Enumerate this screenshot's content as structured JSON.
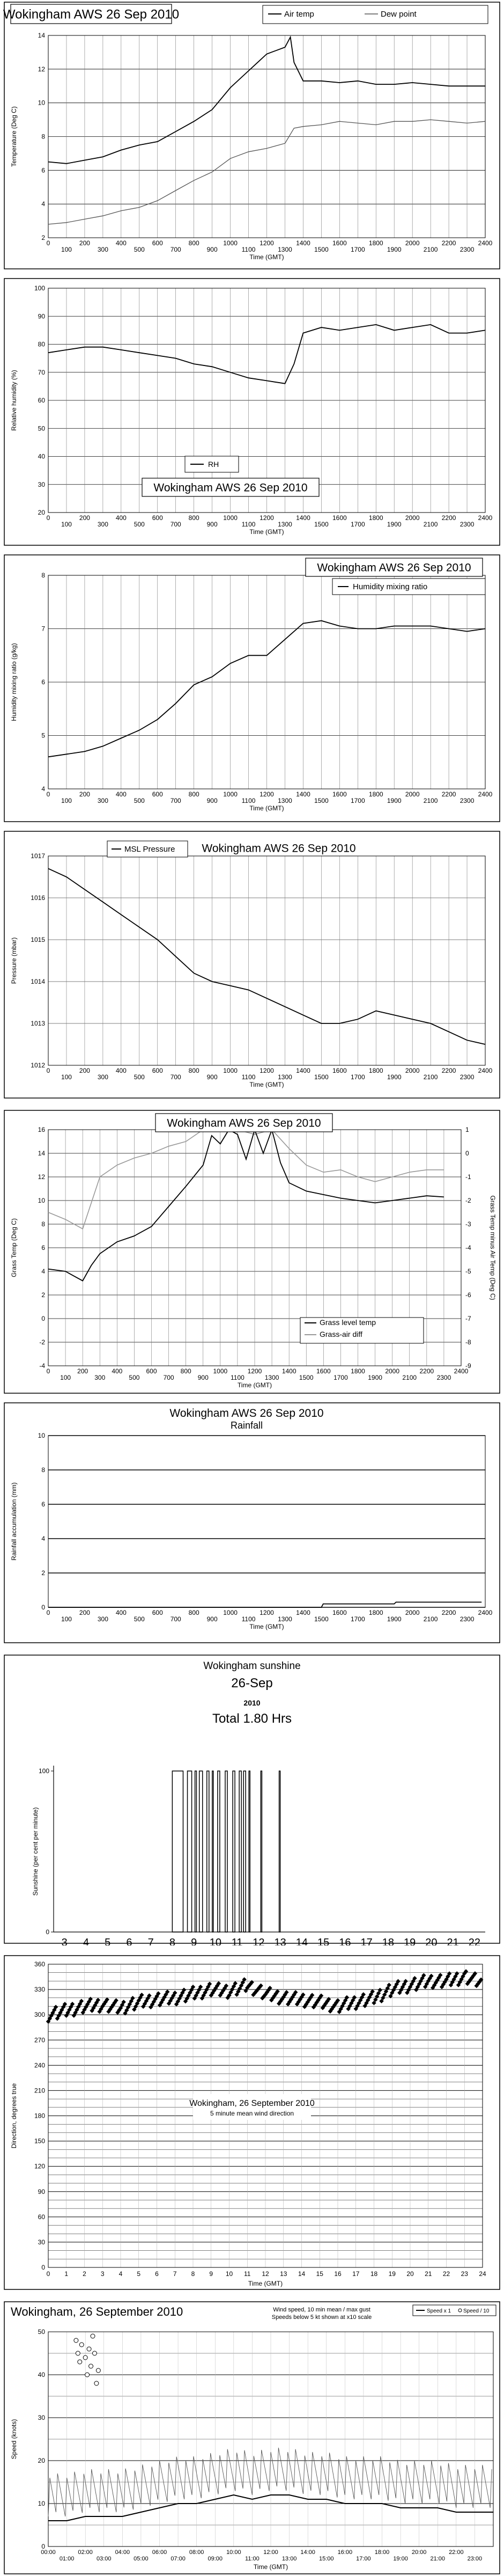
{
  "chart_data": [
    {
      "type": "line",
      "title": "Wokingham AWS 26 Sep 2010",
      "xlabel": "Time (GMT)",
      "ylabel": "Temperature (Deg C)",
      "xlim": [
        0,
        2400
      ],
      "ylim": [
        2,
        14
      ],
      "x_ticks_top": [
        "0",
        "200",
        "400",
        "600",
        "800",
        "1000",
        "1200",
        "1400",
        "1600",
        "1800",
        "2000",
        "2200",
        "2400"
      ],
      "x_ticks_bottom": [
        "100",
        "300",
        "500",
        "700",
        "900",
        "1100",
        "1300",
        "1500",
        "1700",
        "1900",
        "2100",
        "2300"
      ],
      "y_ticks": [
        "2",
        "4",
        "6",
        "8",
        "10",
        "12",
        "14"
      ],
      "legend": [
        "Air temp",
        "Dew point"
      ],
      "series": [
        {
          "name": "Air temp",
          "x": [
            0,
            100,
            200,
            300,
            400,
            500,
            600,
            700,
            800,
            900,
            1000,
            1100,
            1150,
            1200,
            1250,
            1300,
            1330,
            1350,
            1400,
            1500,
            1600,
            1700,
            1800,
            1900,
            2000,
            2100,
            2200,
            2300,
            2400
          ],
          "y": [
            6.5,
            6.4,
            6.6,
            6.8,
            7.2,
            7.5,
            7.7,
            8.3,
            8.9,
            9.6,
            10.9,
            11.9,
            12.4,
            12.9,
            13.1,
            13.3,
            13.9,
            12.4,
            11.3,
            11.3,
            11.2,
            11.3,
            11.1,
            11.1,
            11.2,
            11.1,
            11.0,
            11.0,
            11.0
          ]
        },
        {
          "name": "Dew point",
          "x": [
            0,
            100,
            200,
            300,
            400,
            500,
            600,
            700,
            800,
            900,
            1000,
            1100,
            1200,
            1300,
            1350,
            1400,
            1500,
            1600,
            1700,
            1800,
            1900,
            2000,
            2100,
            2200,
            2300,
            2400
          ],
          "y": [
            2.8,
            2.9,
            3.1,
            3.3,
            3.6,
            3.8,
            4.2,
            4.8,
            5.4,
            5.9,
            6.7,
            7.1,
            7.3,
            7.6,
            8.5,
            8.6,
            8.7,
            8.9,
            8.8,
            8.7,
            8.9,
            8.9,
            9.0,
            8.9,
            8.8,
            8.9
          ]
        }
      ]
    },
    {
      "type": "line",
      "title": "Wokingham AWS 26 Sep 2010",
      "xlabel": "Time (GMT)",
      "ylabel": "Relative humidity (%)",
      "xlim": [
        0,
        2400
      ],
      "ylim": [
        20,
        100
      ],
      "x_ticks_top": [
        "0",
        "200",
        "400",
        "600",
        "800",
        "1000",
        "1200",
        "1400",
        "1600",
        "1800",
        "2000",
        "2200",
        "2400"
      ],
      "x_ticks_bottom": [
        "100",
        "300",
        "500",
        "700",
        "900",
        "1100",
        "1300",
        "1500",
        "1700",
        "1900",
        "2100",
        "2300"
      ],
      "y_ticks": [
        "20",
        "30",
        "40",
        "50",
        "60",
        "70",
        "80",
        "90",
        "100"
      ],
      "legend": [
        "RH"
      ],
      "series": [
        {
          "name": "RH",
          "x": [
            0,
            100,
            200,
            300,
            400,
            500,
            600,
            700,
            800,
            900,
            1000,
            1100,
            1200,
            1300,
            1350,
            1400,
            1500,
            1600,
            1700,
            1800,
            1900,
            2000,
            2100,
            2200,
            2300,
            2400
          ],
          "y": [
            77,
            78,
            79,
            79,
            78,
            77,
            76,
            75,
            73,
            72,
            70,
            68,
            67,
            66,
            73,
            84,
            86,
            85,
            86,
            87,
            85,
            86,
            87,
            84,
            84,
            85
          ]
        }
      ]
    },
    {
      "type": "line",
      "title": "Wokingham AWS 26 Sep 2010",
      "xlabel": "Time (GMT)",
      "ylabel": "Humidity mixing ratio (g/kg)",
      "xlim": [
        0,
        2400
      ],
      "ylim": [
        4,
        8
      ],
      "x_ticks_top": [
        "0",
        "200",
        "400",
        "600",
        "800",
        "1000",
        "1200",
        "1400",
        "1600",
        "1800",
        "2000",
        "2200",
        "2400"
      ],
      "x_ticks_bottom": [
        "100",
        "300",
        "500",
        "700",
        "900",
        "1100",
        "1300",
        "1500",
        "1700",
        "1900",
        "2100",
        "2300"
      ],
      "y_ticks": [
        "4",
        "5",
        "6",
        "7",
        "8"
      ],
      "legend": [
        "Humidity mixing ratio"
      ],
      "series": [
        {
          "name": "Humidity mixing ratio",
          "x": [
            0,
            100,
            200,
            300,
            400,
            500,
            600,
            700,
            800,
            900,
            1000,
            1100,
            1200,
            1300,
            1400,
            1500,
            1600,
            1700,
            1800,
            1900,
            2000,
            2100,
            2200,
            2300,
            2400
          ],
          "y": [
            4.6,
            4.65,
            4.7,
            4.8,
            4.95,
            5.1,
            5.3,
            5.6,
            5.95,
            6.1,
            6.35,
            6.5,
            6.5,
            6.8,
            7.1,
            7.15,
            7.05,
            7.0,
            7.0,
            7.05,
            7.05,
            7.05,
            7.0,
            6.95,
            7.0
          ]
        }
      ]
    },
    {
      "type": "line",
      "title": "Wokingham AWS 26 Sep 2010",
      "xlabel": "Time (GMT)",
      "ylabel": "Pressure (mbar)",
      "xlim": [
        0,
        2400
      ],
      "ylim": [
        1012,
        1017
      ],
      "x_ticks_top": [
        "0",
        "200",
        "400",
        "600",
        "800",
        "1000",
        "1200",
        "1400",
        "1600",
        "1800",
        "2000",
        "2200",
        "2400"
      ],
      "x_ticks_bottom": [
        "100",
        "300",
        "500",
        "700",
        "900",
        "1100",
        "1300",
        "1500",
        "1700",
        "1900",
        "2100",
        "2300"
      ],
      "y_ticks": [
        "1012",
        "1013",
        "1014",
        "1015",
        "1016",
        "1017"
      ],
      "legend": [
        "MSL Pressure"
      ],
      "series": [
        {
          "name": "MSL Pressure",
          "x": [
            0,
            100,
            200,
            300,
            400,
            500,
            600,
            700,
            800,
            900,
            1000,
            1100,
            1200,
            1300,
            1400,
            1500,
            1600,
            1700,
            1800,
            1900,
            2000,
            2100,
            2200,
            2300,
            2400
          ],
          "y": [
            1016.7,
            1016.5,
            1016.2,
            1015.9,
            1015.6,
            1015.3,
            1015.0,
            1014.6,
            1014.2,
            1014.0,
            1013.9,
            1013.8,
            1013.6,
            1013.4,
            1013.2,
            1013.0,
            1013.0,
            1013.1,
            1013.3,
            1013.2,
            1013.1,
            1013.0,
            1012.8,
            1012.6,
            1012.5
          ]
        }
      ]
    },
    {
      "type": "line",
      "title": "Wokingham AWS 26 Sep 2010",
      "xlabel": "Time (GMT)",
      "ylabel": "Grass Temp (Deg C)",
      "ylabel_right": "Grass Temp minus Air Temp (Deg C)",
      "xlim": [
        0,
        2400
      ],
      "ylim": [
        -4,
        16
      ],
      "ylim_right": [
        -9,
        1
      ],
      "x_ticks_top": [
        "0",
        "200",
        "400",
        "600",
        "800",
        "1000",
        "1200",
        "1400",
        "1600",
        "1800",
        "2000",
        "2200",
        "2400"
      ],
      "x_ticks_bottom": [
        "100",
        "300",
        "500",
        "700",
        "900",
        "1100",
        "1300",
        "1500",
        "1700",
        "1900",
        "2100",
        "2300"
      ],
      "y_ticks": [
        "-4",
        "-2",
        "0",
        "2",
        "4",
        "6",
        "8",
        "10",
        "12",
        "14",
        "16"
      ],
      "y_ticks_right": [
        "-9",
        "-8",
        "-7",
        "-6",
        "-5",
        "-4",
        "-3",
        "-2",
        "-1",
        "0",
        "1"
      ],
      "legend": [
        "Grass level temp",
        "Grass-air diff"
      ],
      "series": [
        {
          "name": "Grass level temp",
          "x": [
            0,
            100,
            150,
            200,
            250,
            300,
            400,
            500,
            600,
            700,
            800,
            900,
            950,
            1000,
            1050,
            1100,
            1150,
            1200,
            1250,
            1300,
            1350,
            1400,
            1500,
            1600,
            1700,
            1800,
            1900,
            2000,
            2100,
            2200,
            2300
          ],
          "y": [
            4.2,
            4.0,
            3.6,
            3.2,
            4.5,
            5.5,
            6.5,
            7.0,
            7.8,
            9.5,
            11.2,
            13.0,
            15.5,
            14.8,
            16.0,
            15.6,
            13.5,
            16.0,
            14.0,
            16.0,
            13.2,
            11.5,
            10.8,
            10.5,
            10.2,
            10.0,
            9.8,
            10.0,
            10.2,
            10.4,
            10.3
          ]
        },
        {
          "name": "Grass-air diff",
          "x": [
            0,
            100,
            200,
            300,
            400,
            500,
            600,
            700,
            800,
            900,
            1000,
            1100,
            1200,
            1300,
            1400,
            1500,
            1600,
            1700,
            1800,
            1900,
            2000,
            2100,
            2200,
            2300
          ],
          "y": [
            -2.5,
            -2.8,
            -3.2,
            -1.0,
            -0.5,
            -0.2,
            0.0,
            0.3,
            0.5,
            1.0,
            1.0,
            1.0,
            0.8,
            1.0,
            0.2,
            -0.5,
            -0.8,
            -0.7,
            -1.0,
            -1.2,
            -1.0,
            -0.8,
            -0.7,
            -0.7
          ]
        }
      ]
    },
    {
      "type": "line",
      "title": "Wokingham AWS 26 Sep 2010",
      "subtitle": "Rainfall",
      "xlabel": "Time (GMT)",
      "ylabel": "Rainfall accumulation (mm)",
      "xlim": [
        0,
        2400
      ],
      "ylim": [
        0,
        10
      ],
      "x_ticks_top": [
        "0",
        "200",
        "400",
        "600",
        "800",
        "1000",
        "1200",
        "1400",
        "1600",
        "1800",
        "2000",
        "2200",
        "2400"
      ],
      "x_ticks_bottom": [
        "100",
        "300",
        "500",
        "700",
        "900",
        "1100",
        "1300",
        "1500",
        "1700",
        "1900",
        "2100",
        "2300"
      ],
      "y_ticks": [
        "0",
        "2",
        "4",
        "6",
        "8",
        "10"
      ],
      "series": [
        {
          "x": [
            0,
            1500,
            1510,
            1900,
            1910,
            2380
          ],
          "y": [
            0,
            0,
            0.2,
            0.2,
            0.3,
            0.3
          ]
        }
      ]
    },
    {
      "type": "bar",
      "title": "Wokingham sunshine",
      "subtitle": "26-Sep",
      "year": "2010",
      "total": "Total 1.80 Hrs",
      "ylabel": "Sunshine (per cent per minute)",
      "xlim": [
        3,
        22
      ],
      "ylim": [
        0,
        100
      ],
      "x_ticks": [
        "3",
        "4",
        "5",
        "6",
        "7",
        "8",
        "9",
        "10",
        "11",
        "12",
        "13",
        "14",
        "15",
        "16",
        "17",
        "18",
        "19",
        "20",
        "21",
        "22"
      ],
      "y_ticks": [
        "0",
        "100"
      ],
      "sunny_intervals_hours": [
        [
          8.0,
          8.5
        ],
        [
          8.7,
          8.9
        ],
        [
          9.05,
          9.12
        ],
        [
          9.25,
          9.4
        ],
        [
          9.6,
          9.7
        ],
        [
          9.85,
          9.9
        ],
        [
          10.1,
          10.2
        ],
        [
          10.45,
          10.55
        ],
        [
          10.8,
          10.9
        ],
        [
          11.1,
          11.2
        ],
        [
          11.3,
          11.4
        ],
        [
          11.55,
          11.6
        ],
        [
          12.1,
          12.15
        ],
        [
          12.95,
          13.0
        ]
      ]
    },
    {
      "type": "scatter",
      "title": "Wokingham,  26 September 2010",
      "subtitle": "5 minute mean wind direction",
      "xlabel": "Time (GMT)",
      "ylabel": "Direction, degrees true",
      "xlim": [
        0,
        24
      ],
      "ylim": [
        0,
        360
      ],
      "x_ticks": [
        "0",
        "1",
        "2",
        "3",
        "4",
        "5",
        "6",
        "7",
        "8",
        "9",
        "10",
        "11",
        "12",
        "13",
        "14",
        "15",
        "16",
        "17",
        "18",
        "19",
        "20",
        "21",
        "22",
        "23",
        "24"
      ],
      "y_ticks": [
        "0",
        "30",
        "60",
        "90",
        "120",
        "150",
        "180",
        "210",
        "240",
        "270",
        "300",
        "330",
        "360"
      ],
      "x": [
        0,
        1,
        2,
        3,
        4,
        5,
        6,
        7,
        8,
        9,
        10,
        11,
        12,
        13,
        14,
        15,
        16,
        17,
        18,
        19,
        20,
        21,
        22,
        23,
        24
      ],
      "y": [
        300,
        305,
        310,
        312,
        308,
        315,
        318,
        320,
        325,
        330,
        328,
        335,
        325,
        320,
        318,
        315,
        310,
        315,
        320,
        330,
        335,
        340,
        340,
        345,
        338
      ]
    },
    {
      "type": "line",
      "title": "Wokingham,  26 September 2010",
      "subtitle": "Wind speed, 10 min mean / max gust",
      "note": "Speeds below 5 kt shown at x10 scale",
      "xlabel": "Time (GMT)",
      "ylabel": "Speed (knots)",
      "xlim": [
        0,
        24
      ],
      "ylim": [
        0,
        50
      ],
      "x_ticks_top": [
        "00:00",
        "02:00",
        "04:00",
        "06:00",
        "08:00",
        "10:00",
        "12:00",
        "14:00",
        "16:00",
        "18:00",
        "20:00",
        "22:00"
      ],
      "x_ticks_bottom": [
        "01:00",
        "03:00",
        "05:00",
        "07:00",
        "09:00",
        "11:00",
        "13:00",
        "15:00",
        "17:00",
        "19:00",
        "21:00",
        "23:00"
      ],
      "y_ticks": [
        "0",
        "10",
        "20",
        "30",
        "40",
        "50"
      ],
      "legend": [
        "Speed x 1",
        "Speed / 10"
      ],
      "series": [
        {
          "name": "Speed x 1",
          "x": [
            0,
            1,
            2,
            3,
            4,
            5,
            6,
            7,
            8,
            9,
            10,
            11,
            12,
            13,
            14,
            15,
            16,
            17,
            18,
            19,
            20,
            21,
            22,
            23,
            24
          ],
          "y": [
            6,
            6,
            7,
            7,
            7,
            8,
            9,
            10,
            10,
            11,
            12,
            11,
            12,
            12,
            11,
            11,
            10,
            10,
            10,
            9,
            9,
            9,
            8,
            8,
            8
          ]
        },
        {
          "name": "Speed / 10",
          "x": [
            1.5,
            1.6,
            1.7,
            1.8,
            2.0,
            2.1,
            2.2,
            2.3,
            2.4,
            2.5,
            2.6,
            2.7
          ],
          "y": [
            48,
            45,
            43,
            47,
            44,
            40,
            46,
            42,
            49,
            45,
            38,
            41
          ]
        }
      ]
    }
  ]
}
